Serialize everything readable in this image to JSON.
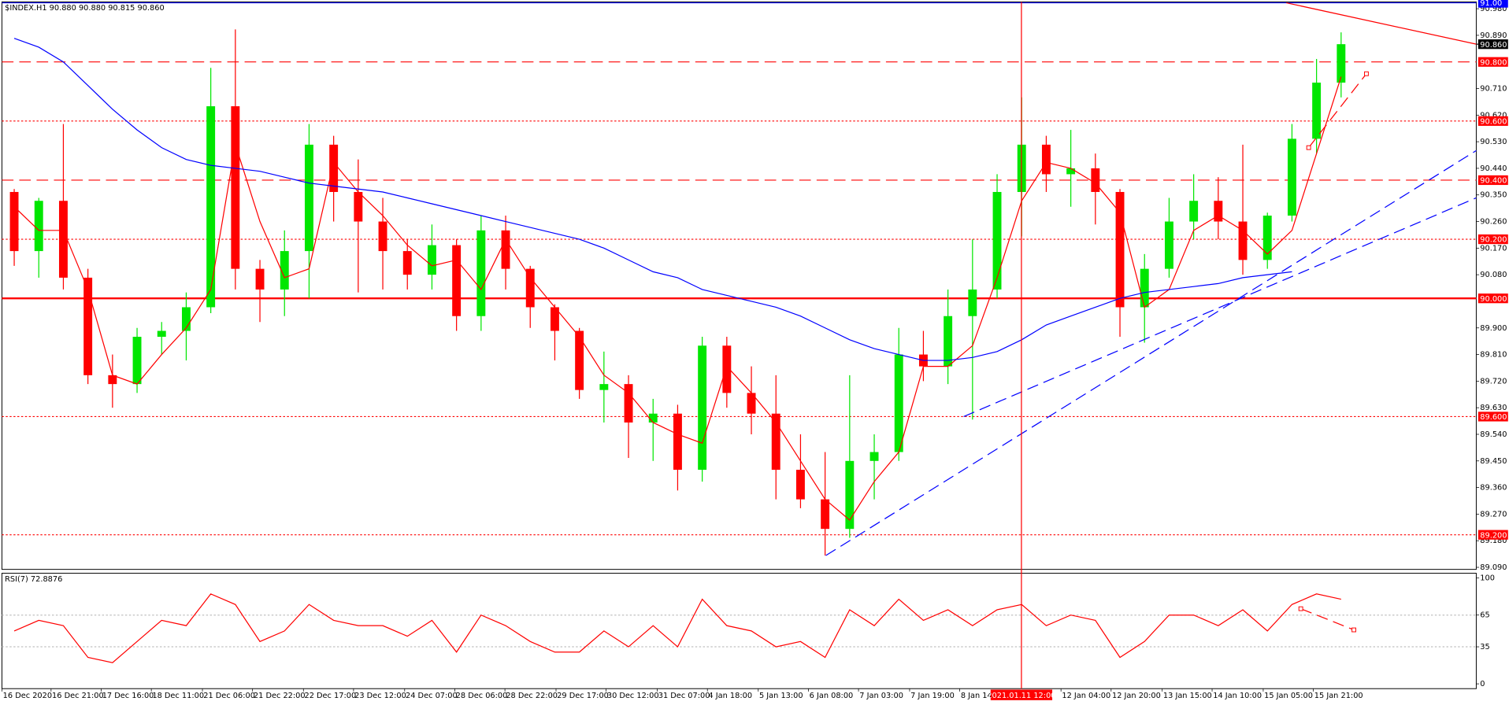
{
  "chart_data": [
    {
      "type": "candlestick",
      "title": "$INDEX.H1  90.880 90.880 90.815 90.860",
      "open": [
        90.36,
        90.16,
        90.33,
        90.07,
        89.74,
        89.71,
        89.87,
        89.89,
        89.97,
        90.65,
        90.1,
        90.03,
        90.16,
        90.52,
        90.36,
        90.26,
        90.16,
        90.08,
        90.18,
        89.94,
        90.23,
        90.1,
        89.97,
        89.89,
        89.69,
        89.71,
        89.58,
        89.61,
        89.42,
        89.84,
        89.68,
        89.61,
        89.42,
        89.32,
        89.22,
        89.45,
        89.48,
        89.81,
        89.77,
        89.94,
        90.03,
        90.36,
        90.52,
        90.42,
        90.44,
        90.36,
        89.97,
        90.1,
        90.26,
        90.33,
        90.26,
        90.13,
        90.28,
        90.54,
        90.73
      ],
      "high": [
        90.37,
        90.34,
        90.59,
        90.1,
        89.81,
        89.9,
        89.92,
        90.02,
        90.78,
        90.91,
        90.13,
        90.23,
        90.59,
        90.55,
        90.47,
        90.34,
        90.2,
        90.25,
        90.2,
        90.28,
        90.28,
        90.11,
        89.98,
        89.9,
        89.82,
        89.74,
        89.66,
        89.64,
        89.87,
        89.87,
        89.77,
        89.74,
        89.54,
        89.48,
        89.74,
        89.54,
        89.9,
        89.89,
        90.03,
        90.2,
        90.42,
        90.68,
        90.55,
        90.57,
        90.49,
        90.37,
        90.15,
        90.34,
        90.42,
        90.41,
        90.52,
        90.29,
        90.59,
        90.81,
        90.9
      ],
      "low": [
        90.11,
        90.07,
        90.03,
        89.71,
        89.63,
        89.68,
        89.81,
        89.79,
        89.95,
        90.03,
        89.92,
        89.94,
        90.0,
        90.26,
        90.02,
        90.03,
        90.03,
        90.03,
        89.89,
        89.89,
        90.03,
        89.9,
        89.79,
        89.66,
        89.58,
        89.46,
        89.45,
        89.35,
        89.38,
        89.63,
        89.54,
        89.32,
        89.29,
        89.13,
        89.19,
        89.32,
        89.45,
        89.72,
        89.71,
        89.59,
        90.0,
        90.21,
        90.36,
        90.31,
        90.25,
        89.87,
        89.85,
        90.07,
        90.2,
        90.2,
        90.08,
        90.1,
        90.26,
        90.49,
        90.68
      ],
      "close": [
        90.16,
        90.33,
        90.07,
        89.74,
        89.71,
        89.87,
        89.89,
        89.97,
        90.65,
        90.1,
        90.03,
        90.16,
        90.52,
        90.36,
        90.26,
        90.16,
        90.08,
        90.18,
        89.94,
        90.23,
        90.1,
        89.97,
        89.89,
        89.69,
        89.71,
        89.58,
        89.61,
        89.42,
        89.84,
        89.68,
        89.61,
        89.42,
        89.32,
        89.22,
        89.45,
        89.48,
        89.81,
        89.77,
        89.94,
        90.03,
        90.36,
        90.52,
        90.42,
        90.44,
        90.36,
        89.97,
        90.1,
        90.26,
        90.33,
        90.26,
        90.13,
        90.28,
        90.54,
        90.73,
        90.86
      ],
      "up_color": "#00e600",
      "down_color": "#ff0000",
      "series": [
        {
          "color": "#ff0000",
          "values": [
            90.31,
            90.23,
            90.23,
            90.03,
            89.74,
            89.71,
            89.81,
            89.9,
            90.03,
            90.52,
            90.26,
            90.07,
            90.1,
            90.46,
            90.36,
            90.28,
            90.18,
            90.11,
            90.13,
            90.03,
            90.2,
            90.07,
            89.97,
            89.87,
            89.74,
            89.68,
            89.58,
            89.54,
            89.51,
            89.77,
            89.68,
            89.58,
            89.45,
            89.32,
            89.25,
            89.38,
            89.48,
            89.77,
            89.77,
            89.84,
            90.07,
            90.33,
            90.46,
            90.44,
            90.39,
            90.29,
            89.97,
            90.03,
            90.23,
            90.28,
            90.23,
            90.15,
            90.23,
            90.49,
            90.75
          ]
        },
        {
          "color": "#0000ff",
          "values": [
            90.88,
            90.85,
            90.8,
            90.72,
            90.64,
            90.57,
            90.51,
            90.47,
            90.45,
            90.44,
            90.43,
            90.41,
            90.39,
            90.38,
            90.37,
            90.36,
            90.34,
            90.32,
            90.3,
            90.28,
            90.26,
            90.24,
            90.22,
            90.2,
            90.17,
            90.13,
            90.09,
            90.07,
            90.03,
            90.01,
            89.99,
            89.97,
            89.94,
            89.9,
            89.86,
            89.83,
            89.81,
            89.79,
            89.79,
            89.8,
            89.82,
            89.86,
            89.91,
            89.94,
            89.97,
            90.0,
            90.02,
            90.03,
            90.04,
            90.05,
            90.07,
            90.08,
            90.09,
            null,
            null
          ]
        }
      ],
      "ylim": [
        89.083,
        91.003
      ],
      "yticks": [
        {
          "value": 90.98,
          "label": "90.980"
        },
        {
          "value": 90.89,
          "label": "90.890"
        },
        {
          "value": 90.71,
          "label": "90.710"
        },
        {
          "value": 90.62,
          "label": "90.620"
        },
        {
          "value": 90.53,
          "label": "90.530"
        },
        {
          "value": 90.44,
          "label": "90.440"
        },
        {
          "value": 90.35,
          "label": "90.350"
        },
        {
          "value": 90.26,
          "label": "90.260"
        },
        {
          "value": 90.17,
          "label": "90.170"
        },
        {
          "value": 90.08,
          "label": "90.080"
        },
        {
          "value": 89.9,
          "label": "89.900"
        },
        {
          "value": 89.81,
          "label": "89.810"
        },
        {
          "value": 89.72,
          "label": "89.720"
        },
        {
          "value": 89.63,
          "label": "89.630"
        },
        {
          "value": 89.54,
          "label": "89.540"
        },
        {
          "value": 89.45,
          "label": "89.450"
        },
        {
          "value": 89.36,
          "label": "89.360"
        },
        {
          "value": 89.27,
          "label": "89.270"
        },
        {
          "value": 89.18,
          "label": "89.180"
        },
        {
          "value": 89.09,
          "label": "89.090"
        }
      ],
      "xlim": [
        0,
        60
      ],
      "xticks": [
        {
          "value": 0,
          "label": "16 Dec 2020"
        },
        {
          "value": 2.0,
          "label": "16 Dec 21:00"
        },
        {
          "value": 4.04,
          "label": "17 Dec 16:00"
        },
        {
          "value": 6.08,
          "label": "18 Dec 11:00"
        },
        {
          "value": 8.16,
          "label": "21 Dec 06:00"
        },
        {
          "value": 10.2,
          "label": "21 Dec 22:00"
        },
        {
          "value": 12.27,
          "label": "22 Dec 17:00"
        },
        {
          "value": 14.31,
          "label": "23 Dec 12:00"
        },
        {
          "value": 16.39,
          "label": "24 Dec 07:00"
        },
        {
          "value": 18.43,
          "label": "28 Dec 06:00"
        },
        {
          "value": 20.47,
          "label": "28 Dec 22:00"
        },
        {
          "value": 22.55,
          "label": "29 Dec 17:00"
        },
        {
          "value": 24.59,
          "label": "30 Dec 12:00"
        },
        {
          "value": 26.67,
          "label": "31 Dec 07:00"
        },
        {
          "value": 28.71,
          "label": "4 Jan 18:00"
        },
        {
          "value": 30.78,
          "label": "5 Jan 13:00"
        },
        {
          "value": 32.82,
          "label": "6 Jan 08:00"
        },
        {
          "value": 34.86,
          "label": "7 Jan 03:00"
        },
        {
          "value": 36.94,
          "label": "7 Jan 19:00"
        },
        {
          "value": 38.98,
          "label": "8 Jan 14:00"
        },
        {
          "value": 43.1,
          "label": "12 Jan 04:00"
        },
        {
          "value": 45.14,
          "label": "12 Jan 20:00"
        },
        {
          "value": 47.22,
          "label": "13 Jan 15:00"
        },
        {
          "value": 49.25,
          "label": "14 Jan 10:00"
        },
        {
          "value": 51.33,
          "label": "15 Jan 05:00"
        },
        {
          "value": 53.37,
          "label": "15 Jan 21:00"
        }
      ],
      "crosshair": {
        "value": 41.49,
        "label": "2021.01.11 12:00",
        "color": "#ff0000"
      },
      "current_price": {
        "value": 90.86,
        "label": "90.860"
      },
      "levels": [
        {
          "value": 91.0,
          "label": "91.00",
          "color": "#0000ff",
          "style": "solid"
        },
        {
          "value": 90.8,
          "label": "90.800",
          "color": "#ff0000",
          "style": "dash"
        },
        {
          "value": 90.6,
          "label": "90.600",
          "color": "#ff0000",
          "style": "dot"
        },
        {
          "value": 90.4,
          "label": "90.400",
          "color": "#ff0000",
          "style": "dash"
        },
        {
          "value": 90.2,
          "label": "90.200",
          "color": "#ff0000",
          "style": "dot"
        },
        {
          "value": 90.0,
          "label": "90.000",
          "color": "#ff0000",
          "style": "thick"
        },
        {
          "value": 89.6,
          "label": "89.600",
          "color": "#ff0000",
          "style": "dot"
        },
        {
          "value": 89.2,
          "label": "89.200",
          "color": "#ff0000",
          "style": "dot"
        }
      ],
      "trendlines": [
        {
          "x": [
            33.53,
            60
          ],
          "y": [
            89.13,
            90.5
          ],
          "color": "#0000ff",
          "style": "dash"
        },
        {
          "x": [
            39.14,
            60
          ],
          "y": [
            89.6,
            90.34
          ],
          "color": "#0000ff",
          "style": "dash"
        },
        {
          "x": [
            52.27,
            60
          ],
          "y": [
            91.0,
            90.86
          ],
          "color": "#ff0000",
          "style": "solid"
        },
        {
          "x": [
            53.18,
            55.53
          ],
          "y": [
            90.51,
            90.76
          ],
          "color": "#ff0000",
          "style": "dash"
        }
      ]
    },
    {
      "type": "line",
      "title": "RSI(7) 72.8876",
      "color": "#ff0000",
      "values": [
        50,
        60,
        55,
        25,
        20,
        40,
        60,
        55,
        85,
        75,
        40,
        50,
        75,
        60,
        55,
        55,
        45,
        60,
        30,
        65,
        55,
        40,
        30,
        30,
        50,
        35,
        55,
        35,
        80,
        55,
        50,
        35,
        40,
        25,
        70,
        55,
        80,
        60,
        70,
        55,
        70,
        75,
        55,
        65,
        60,
        25,
        40,
        65,
        65,
        55,
        70,
        50,
        75,
        85,
        80
      ],
      "ylim": [
        0,
        100
      ],
      "yticks": [
        100,
        65,
        35,
        0
      ],
      "levels": [
        65,
        35
      ],
      "trendlines": [
        {
          "x": [
            52.86,
            55.02
          ],
          "y": [
            71,
            51
          ],
          "color": "#ff0000",
          "style": "dash"
        }
      ]
    }
  ]
}
